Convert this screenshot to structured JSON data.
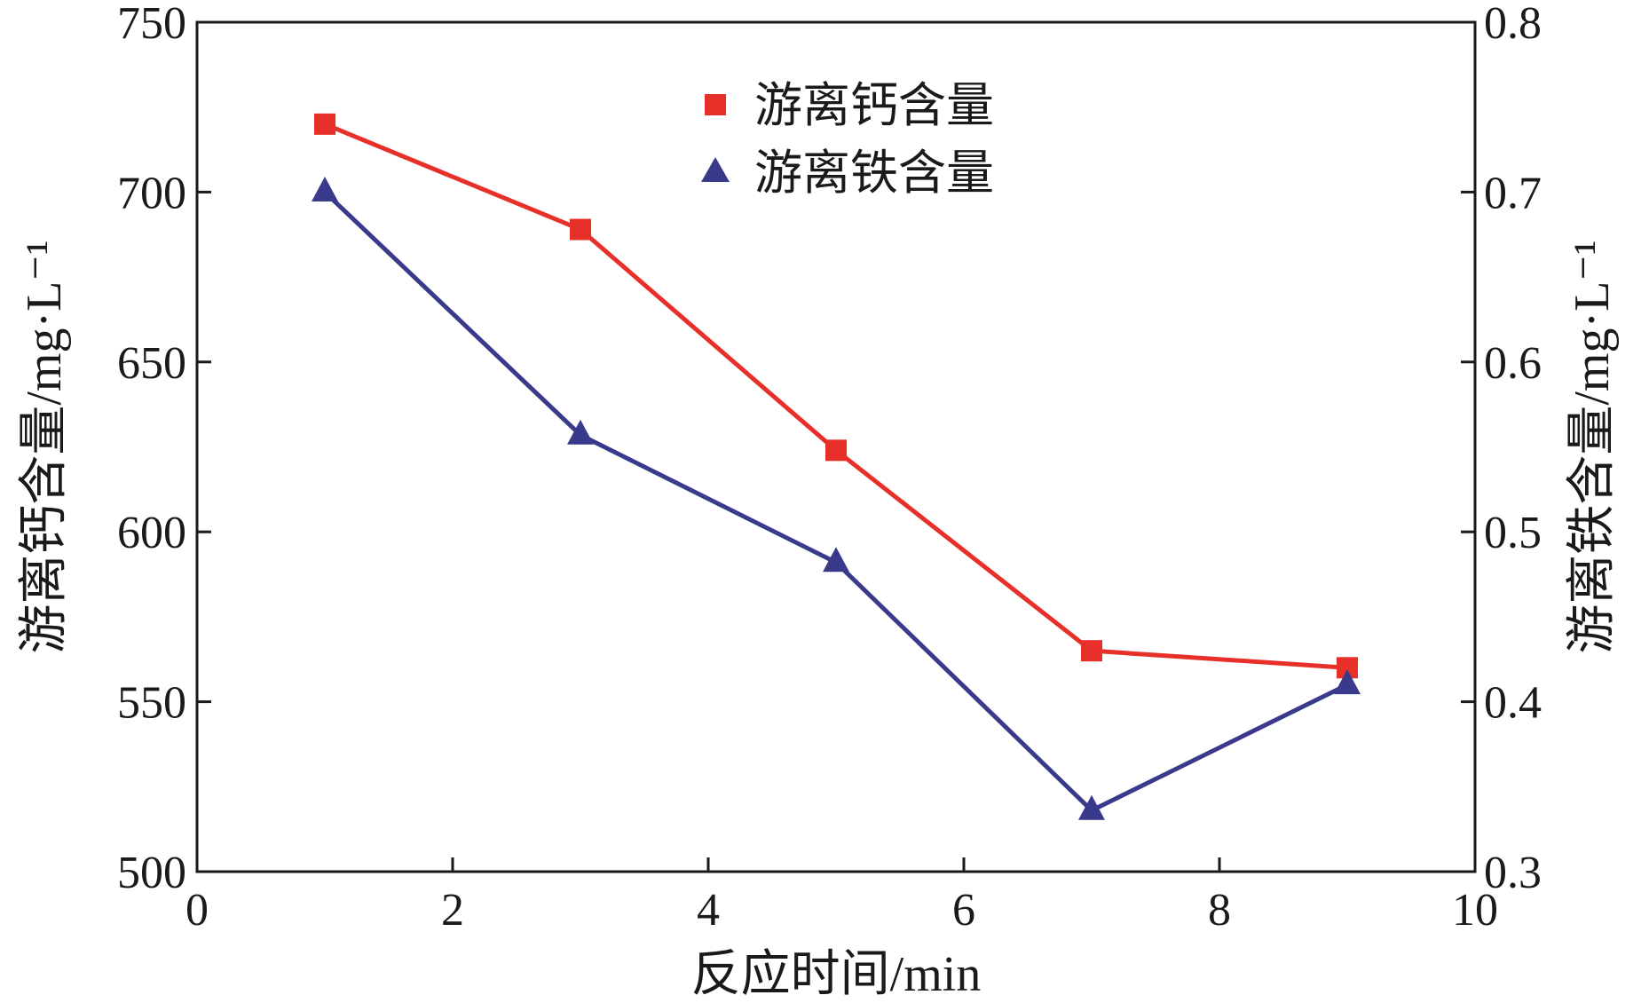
{
  "chart_data": {
    "type": "line",
    "xlabel": "反应时间/min",
    "ylabel_left": "游离钙含量/mg·L⁻¹",
    "ylabel_right": "游离铁含量/mg·L⁻¹",
    "xlim": [
      0,
      10
    ],
    "ylim_left": [
      500,
      750
    ],
    "ylim_right": [
      0.3,
      0.8
    ],
    "x_ticks": [
      0,
      2,
      4,
      6,
      8,
      10
    ],
    "y_ticks_left": [
      500,
      550,
      600,
      650,
      700,
      750
    ],
    "y_ticks_right": [
      0.3,
      0.4,
      0.5,
      0.6,
      0.7,
      0.8
    ],
    "grid": false,
    "legend_position": "top-center",
    "series": [
      {
        "name": "游离钙含量",
        "axis": "left",
        "marker": "square",
        "color": "#e8302a",
        "x": [
          1,
          3,
          5,
          7,
          9
        ],
        "y": [
          720,
          689,
          624,
          565,
          560
        ]
      },
      {
        "name": "游离铁含量",
        "axis": "right",
        "marker": "triangle",
        "color": "#3a3a8c",
        "x": [
          1,
          3,
          5,
          7,
          9
        ],
        "y": [
          0.7,
          0.557,
          0.482,
          0.336,
          0.41
        ]
      }
    ]
  }
}
